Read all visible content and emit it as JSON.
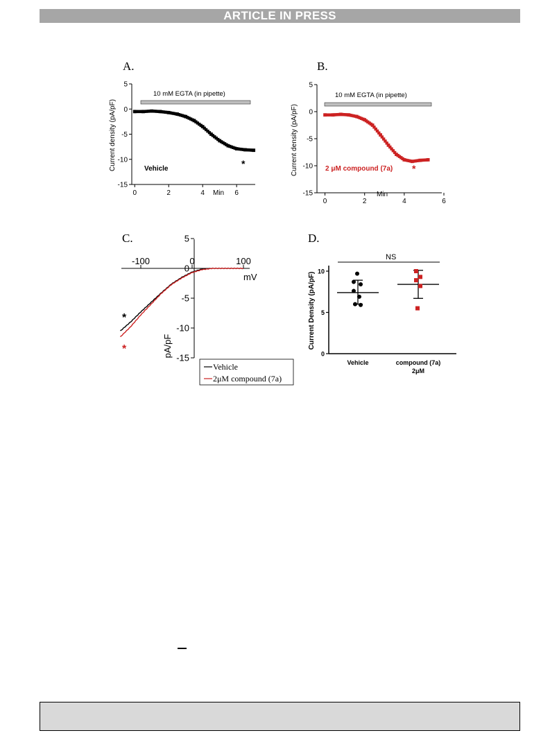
{
  "header": {
    "banner": "ARTICLE IN PRESS"
  },
  "colors": {
    "vehicle": "#000000",
    "compound": "#cc2222",
    "bar": "#bfbfbf",
    "banner": "#a6a6a6"
  },
  "chart_data": [
    {
      "panel": "A.",
      "type": "scatter",
      "ylabel": "Current density (pA/pF)",
      "xunit": "Min",
      "xticks": [
        "0",
        "2",
        "4",
        "6"
      ],
      "yticks": [
        "5",
        "0",
        "-5",
        "-10",
        "-15"
      ],
      "xlim": [
        -0.5,
        7.3
      ],
      "ylim": [
        -15,
        5
      ],
      "bar_label": "10 mM EGTA (in pipette)",
      "condition_label": "Vehicle",
      "annotation": "*",
      "color": "#000000",
      "x": [
        0.0,
        0.5,
        1.0,
        1.5,
        2.0,
        2.5,
        3.0,
        3.5,
        4.0,
        4.5,
        5.0,
        5.5,
        6.0,
        6.5,
        7.0
      ],
      "y": [
        -0.5,
        -0.5,
        -0.4,
        -0.5,
        -0.7,
        -1.0,
        -1.5,
        -2.3,
        -3.5,
        -5.0,
        -6.3,
        -7.3,
        -7.9,
        -8.1,
        -8.2
      ]
    },
    {
      "panel": "B.",
      "type": "scatter",
      "ylabel": "Current density (pA/pF)",
      "xunit": "Min",
      "xticks": [
        "0",
        "2",
        "4",
        "6"
      ],
      "yticks": [
        "5",
        "0",
        "-5",
        "-10",
        "-15"
      ],
      "xlim": [
        -0.3,
        6.0
      ],
      "ylim": [
        -15,
        5
      ],
      "bar_label": "10 mM EGTA (in pipette)",
      "condition_label": "2 μM compound (7a)",
      "annotation": "*",
      "color": "#cc2222",
      "x": [
        0.0,
        0.4,
        0.8,
        1.2,
        1.6,
        2.0,
        2.4,
        2.8,
        3.2,
        3.6,
        4.0,
        4.4,
        4.8,
        5.2
      ],
      "y": [
        -0.6,
        -0.6,
        -0.5,
        -0.6,
        -0.9,
        -1.5,
        -2.5,
        -4.3,
        -6.2,
        -7.9,
        -8.9,
        -9.2,
        -9.0,
        -8.9
      ]
    },
    {
      "panel": "C.",
      "type": "line",
      "xlabel": "mV",
      "ylabel": "pA/pF",
      "xticks": [
        "-100",
        "0",
        "100"
      ],
      "yticks": [
        "5",
        "0",
        "-5",
        "-10",
        "-15"
      ],
      "xlim": [
        -150,
        100
      ],
      "ylim": [
        -15,
        5
      ],
      "annotation": "*",
      "series": [
        {
          "name": "Vehicle",
          "color": "#000000",
          "x": [
            -140,
            -120,
            -100,
            -80,
            -60,
            -40,
            -20,
            0,
            20,
            40,
            60,
            80,
            100
          ],
          "y": [
            -10.5,
            -9.0,
            -7.3,
            -5.7,
            -4.1,
            -2.6,
            -1.5,
            -0.6,
            -0.1,
            0.0,
            0.0,
            0.0,
            0.0
          ]
        },
        {
          "name": "2μM compound (7a)",
          "color": "#cc2222",
          "x": [
            -140,
            -120,
            -100,
            -80,
            -60,
            -40,
            -20,
            0,
            20,
            40,
            60,
            80,
            100
          ],
          "y": [
            -11.5,
            -9.8,
            -7.8,
            -6.0,
            -4.2,
            -2.7,
            -1.6,
            -0.7,
            -0.2,
            0.0,
            0.0,
            0.0,
            0.0
          ]
        }
      ]
    },
    {
      "panel": "D.",
      "type": "scatter",
      "ylabel": "Current Density (pA/pF)",
      "yticks": [
        "10",
        "5",
        "0"
      ],
      "ylim": [
        0,
        10.5
      ],
      "significance": "NS",
      "groups": [
        {
          "name": "Vehicle",
          "color": "#000000",
          "marker": "circle",
          "values": [
            9.7,
            8.7,
            8.4,
            7.6,
            6.9,
            6.0,
            5.9
          ],
          "mean": 7.4,
          "sd_low": 6.0,
          "sd_high": 8.9
        },
        {
          "name": "compound (7a)\n2μM",
          "label_line1": "compound (7a)",
          "label_line2": "2μM",
          "color": "#cc2222",
          "marker": "square",
          "values": [
            10.0,
            9.3,
            8.9,
            8.2,
            5.5
          ],
          "mean": 8.4,
          "sd_low": 6.7,
          "sd_high": 10.1
        }
      ]
    }
  ]
}
